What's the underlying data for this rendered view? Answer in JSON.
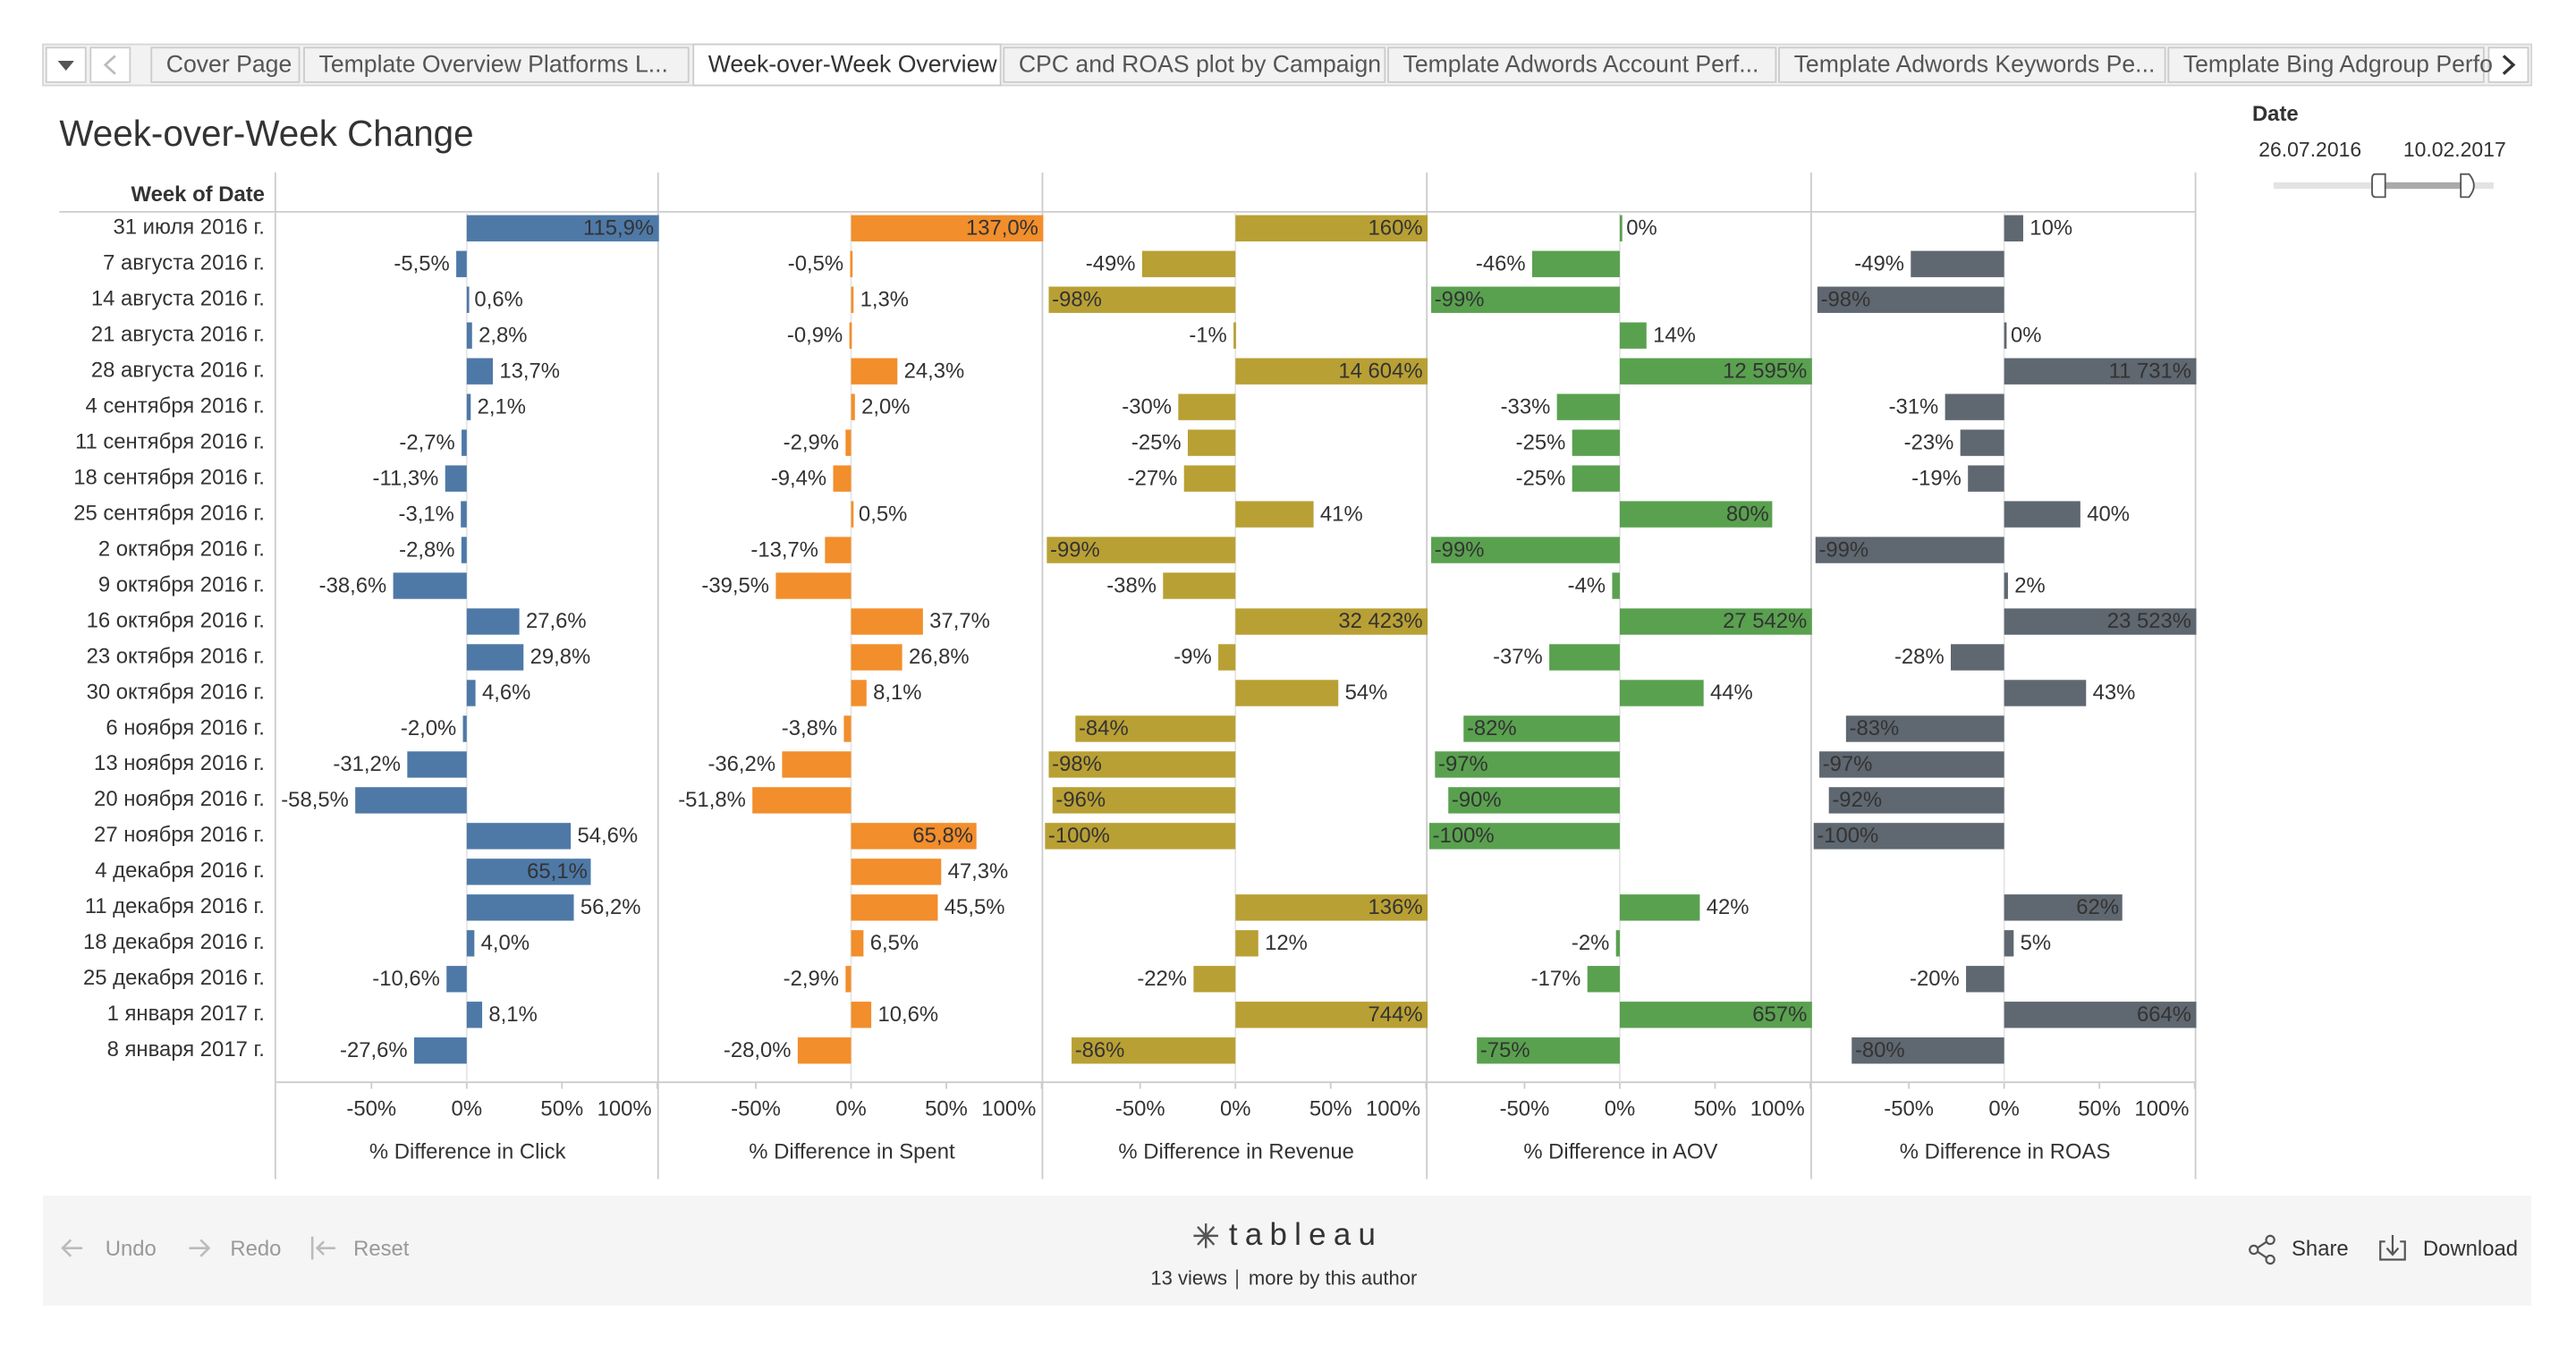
{
  "tabs": [
    "Cover Page",
    "Template Overview Platforms L...",
    "Week-over-Week Overview",
    "CPC and ROAS plot by Campaign",
    "Template Adwords Account Perf...",
    "Template Adwords Keywords Pe...",
    "Template Bing Adgroup Perfo"
  ],
  "dashboard": {
    "title": "Week-over-Week Change",
    "date_filter": {
      "label": "Date",
      "start": "26.07.2016",
      "end": "10.02.2017"
    }
  },
  "chart_data": {
    "type": "bar",
    "orientation": "horizontal",
    "row_header": "Week of Date",
    "categories": [
      "31 июля 2016 г.",
      "7 августа 2016 г.",
      "14 августа 2016 г.",
      "21 августа 2016 г.",
      "28 августа 2016 г.",
      "4 сентября 2016 г.",
      "11 сентября 2016 г.",
      "18 сентября 2016 г.",
      "25 сентября 2016 г.",
      "2 октября 2016 г.",
      "9 октября 2016 г.",
      "16 октября 2016 г.",
      "23 октября 2016 г.",
      "30 октября 2016 г.",
      "6 ноября 2016 г.",
      "13 ноября 2016 г.",
      "20 ноября 2016 г.",
      "27 ноября 2016 г.",
      "4 декабря 2016 г.",
      "11 декабря 2016 г.",
      "18 декабря 2016 г.",
      "25 декабря 2016 г.",
      "1 января 2017 г.",
      "8 января 2017 г."
    ],
    "xlim": [
      -100,
      100
    ],
    "xticks": [
      {
        "value": -50,
        "label": "-50%"
      },
      {
        "value": 0,
        "label": "0%"
      },
      {
        "value": 50,
        "label": "50%"
      },
      {
        "value": 100,
        "label": "100%"
      }
    ],
    "series": [
      {
        "name": "% Difference in Click",
        "color": "#4e79a7",
        "values": [
          115.9,
          -5.5,
          0.6,
          2.8,
          13.7,
          2.1,
          -2.7,
          -11.3,
          -3.1,
          -2.8,
          -38.6,
          27.6,
          29.8,
          4.6,
          -2.0,
          -31.2,
          -58.5,
          54.6,
          65.1,
          56.2,
          4.0,
          -10.6,
          8.1,
          -27.6
        ],
        "value_labels": [
          "115,9%",
          "-5,5%",
          "0,6%",
          "2,8%",
          "13,7%",
          "2,1%",
          "-2,7%",
          "-11,3%",
          "-3,1%",
          "-2,8%",
          "-38,6%",
          "27,6%",
          "29,8%",
          "4,6%",
          "-2,0%",
          "-31,2%",
          "-58,5%",
          "54,6%",
          "65,1%",
          "56,2%",
          "4,0%",
          "-10,6%",
          "8,1%",
          "-27,6%"
        ]
      },
      {
        "name": "% Difference in Spent",
        "color": "#f28e2b",
        "values": [
          137.0,
          -0.5,
          1.3,
          -0.9,
          24.3,
          2.0,
          -2.9,
          -9.4,
          0.5,
          -13.7,
          -39.5,
          37.7,
          26.8,
          8.1,
          -3.8,
          -36.2,
          -51.8,
          65.8,
          47.3,
          45.5,
          6.5,
          -2.9,
          10.6,
          -28.0
        ],
        "value_labels": [
          "137,0%",
          "-0,5%",
          "1,3%",
          "-0,9%",
          "24,3%",
          "2,0%",
          "-2,9%",
          "-9,4%",
          "0,5%",
          "-13,7%",
          "-39,5%",
          "37,7%",
          "26,8%",
          "8,1%",
          "-3,8%",
          "-36,2%",
          "-51,8%",
          "65,8%",
          "47,3%",
          "45,5%",
          "6,5%",
          "-2,9%",
          "10,6%",
          "-28,0%"
        ]
      },
      {
        "name": "% Difference in Revenue",
        "color": "#b9a034",
        "values": [
          160,
          -49,
          -98,
          -1,
          14604,
          -30,
          -25,
          -27,
          41,
          -99,
          -38,
          32423,
          -9,
          54,
          -84,
          -98,
          -96,
          -100,
          null,
          136,
          12,
          -22,
          744,
          -86
        ],
        "value_labels": [
          "160%",
          "-49%",
          "-98%",
          "-1%",
          "14 604%",
          "-30%",
          "-25%",
          "-27%",
          "41%",
          "-99%",
          "-38%",
          "32 423%",
          "-9%",
          "54%",
          "-84%",
          "-98%",
          "-96%",
          "-100%",
          null,
          "136%",
          "12%",
          "-22%",
          "744%",
          "-86%"
        ]
      },
      {
        "name": "% Difference in AOV",
        "color": "#59a14f",
        "values": [
          0,
          -46,
          -99,
          14,
          12595,
          -33,
          -25,
          -25,
          80,
          -99,
          -4,
          27542,
          -37,
          44,
          -82,
          -97,
          -90,
          -100,
          null,
          42,
          -2,
          -17,
          657,
          -75
        ],
        "value_labels": [
          "0%",
          "-46%",
          "-99%",
          "14%",
          "12 595%",
          "-33%",
          "-25%",
          "-25%",
          "80%",
          "-99%",
          "-4%",
          "27 542%",
          "-37%",
          "44%",
          "-82%",
          "-97%",
          "-90%",
          "-100%",
          null,
          "42%",
          "-2%",
          "-17%",
          "657%",
          "-75%"
        ]
      },
      {
        "name": "% Difference in ROAS",
        "color": "#5f6770",
        "values": [
          10,
          -49,
          -98,
          0,
          11731,
          -31,
          -23,
          -19,
          40,
          -99,
          2,
          23523,
          -28,
          43,
          -83,
          -97,
          -92,
          -100,
          null,
          62,
          5,
          -20,
          664,
          -80
        ],
        "value_labels": [
          "10%",
          "-49%",
          "-98%",
          "0%",
          "11 731%",
          "-31%",
          "-23%",
          "-19%",
          "40%",
          "-99%",
          "2%",
          "23 523%",
          "-28%",
          "43%",
          "-83%",
          "-97%",
          "-92%",
          "-100%",
          null,
          "62%",
          "5%",
          "-20%",
          "664%",
          "-80%"
        ]
      }
    ]
  },
  "toolbar": {
    "undo": "Undo",
    "redo": "Redo",
    "reset": "Reset",
    "brand": "tableau",
    "views": "13 views",
    "more": "more by this author",
    "share": "Share",
    "download": "Download"
  }
}
